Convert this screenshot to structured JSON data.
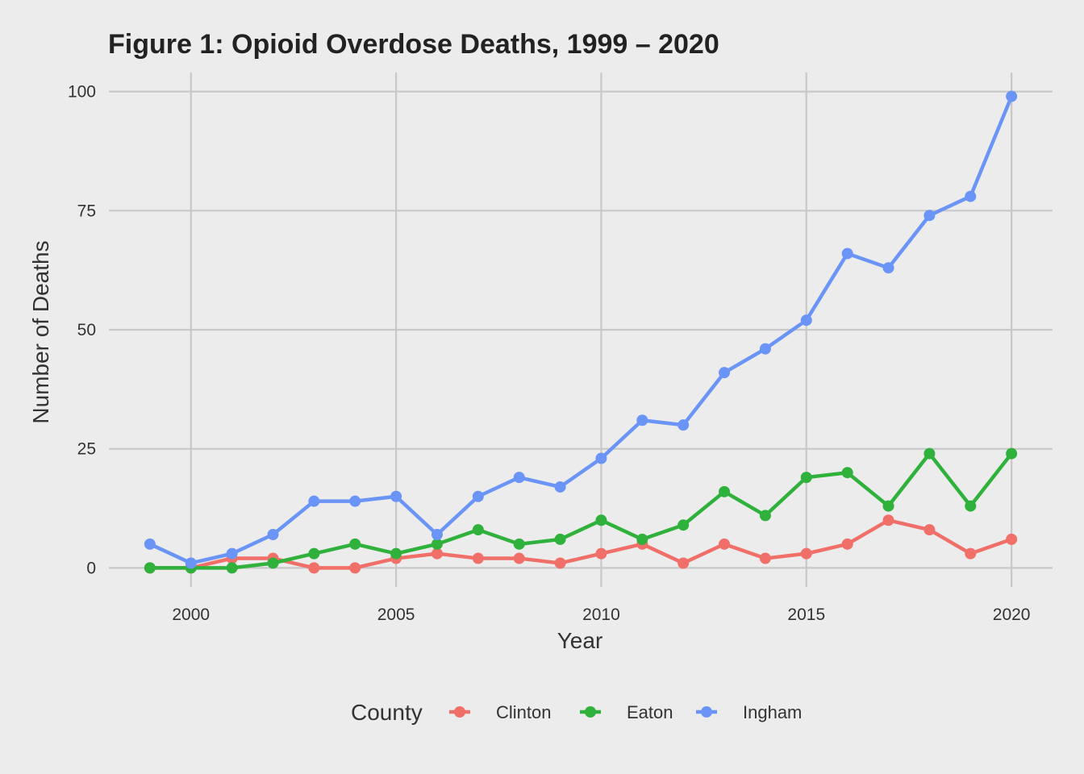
{
  "chart_data": {
    "type": "line",
    "title": "Figure 1: Opioid Overdose Deaths, 1999 – 2020",
    "xlabel": "Year",
    "ylabel": "Number of Deaths",
    "x": [
      1999,
      2000,
      2001,
      2002,
      2003,
      2004,
      2005,
      2006,
      2007,
      2008,
      2009,
      2010,
      2011,
      2012,
      2013,
      2014,
      2015,
      2016,
      2017,
      2018,
      2019,
      2020
    ],
    "xlim": [
      1998,
      2021
    ],
    "ylim": [
      -4,
      104
    ],
    "x_ticks": [
      2000,
      2005,
      2010,
      2015,
      2020
    ],
    "x_tick_labels": [
      "2000",
      "2005",
      "2010",
      "2015",
      "2020"
    ],
    "y_ticks": [
      0,
      25,
      50,
      75,
      100
    ],
    "y_tick_labels": [
      "0",
      "25",
      "50",
      "75",
      "100"
    ],
    "grid": true,
    "legend": {
      "title": "County",
      "position": "bottom"
    },
    "series": [
      {
        "name": "Clinton",
        "color": "#f06f68",
        "values": [
          0,
          0,
          2,
          2,
          0,
          0,
          2,
          3,
          2,
          2,
          1,
          3,
          5,
          1,
          5,
          2,
          3,
          5,
          10,
          8,
          3,
          6
        ]
      },
      {
        "name": "Eaton",
        "color": "#2fb13c",
        "values": [
          0,
          0,
          0,
          1,
          3,
          5,
          3,
          5,
          8,
          5,
          6,
          10,
          6,
          9,
          16,
          11,
          19,
          20,
          13,
          24,
          13,
          24
        ]
      },
      {
        "name": "Ingham",
        "color": "#6b94f7",
        "values": [
          5,
          1,
          3,
          7,
          14,
          14,
          15,
          7,
          15,
          19,
          17,
          23,
          31,
          30,
          41,
          46,
          52,
          66,
          63,
          74,
          78,
          99
        ]
      }
    ]
  }
}
